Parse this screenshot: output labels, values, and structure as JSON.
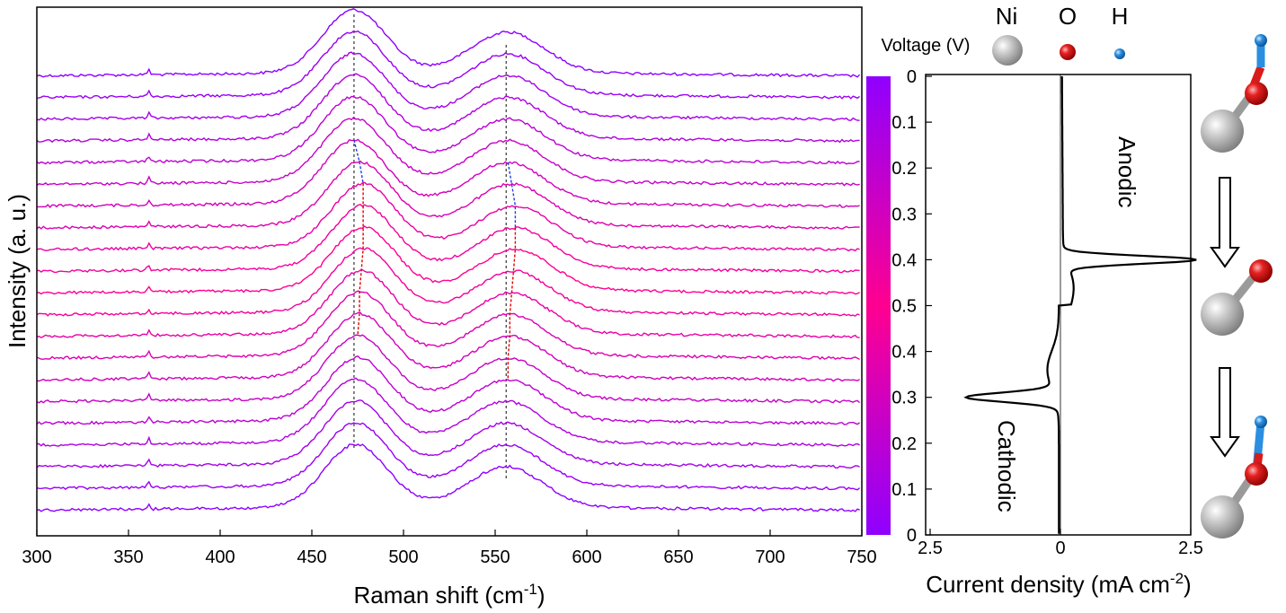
{
  "colors": {
    "low_voltage": "#8f00ff",
    "high_voltage": "#ff0090",
    "blue_dash": "#1f3fe0",
    "red_dash": "#e00000",
    "ni_atom": "#b9b9b9",
    "o_atom": "#d81c1c",
    "h_atom": "#2b8fe0",
    "axis": "#000000"
  },
  "icons": [
    "ni-atom-icon",
    "o-atom-icon",
    "h-atom-icon",
    "down-arrow-icon",
    "ni-o-h-molecule-icon",
    "ni-o-molecule-icon"
  ],
  "legend": {
    "voltage_label": "Voltage (V)",
    "ni": "Ni",
    "o": "O",
    "h": "H"
  },
  "chart_data": [
    {
      "type": "line",
      "title": "",
      "xlabel_base": "Raman shift (cm",
      "xlabel_sup": "-1",
      "xlabel_end": ")",
      "ylabel": "Intensity (a. u.)",
      "xlim": [
        300,
        750
      ],
      "xticks": [
        "300",
        "350",
        "400",
        "450",
        "500",
        "550",
        "600",
        "650",
        "700",
        "750"
      ],
      "n_spectra": 21,
      "voltages": [
        0,
        0.05,
        0.1,
        0.15,
        0.2,
        0.25,
        0.3,
        0.35,
        0.4,
        0.45,
        0.5,
        0.45,
        0.4,
        0.35,
        0.3,
        0.25,
        0.2,
        0.15,
        0.1,
        0.05,
        0
      ],
      "peak1_positions": [
        473,
        473,
        473,
        473,
        473,
        473,
        473,
        476,
        478,
        478,
        478,
        478,
        477,
        476,
        476,
        475,
        475,
        474,
        474,
        474,
        474
      ],
      "peak2_positions": [
        557,
        557,
        557,
        557,
        557,
        557,
        557,
        559,
        561,
        561,
        561,
        560,
        559,
        558,
        558,
        557,
        557,
        556,
        556,
        556,
        556
      ],
      "sharp_line": 361,
      "reference_lines": [
        473,
        556
      ]
    },
    {
      "type": "heatmap",
      "title": "Voltage (V)",
      "ticks": [
        "0",
        "0.1",
        "0.2",
        "0.3",
        "0.4",
        "0.5",
        "0.4",
        "0.3",
        "0.2",
        "0.1",
        "0"
      ],
      "range": [
        0,
        0.5
      ]
    },
    {
      "type": "line",
      "title": "",
      "xlabel_base": "Current density (mA cm",
      "xlabel_sup": "-2",
      "xlabel_end": ")",
      "xticks": [
        "2.5",
        "0",
        "2.5"
      ],
      "annotations": [
        "Anodic",
        "Cathodic"
      ],
      "anodic_peak": {
        "voltage": 0.4,
        "current": 2.5
      },
      "cathodic_peak": {
        "voltage": 0.3,
        "current": -1.7
      }
    }
  ]
}
